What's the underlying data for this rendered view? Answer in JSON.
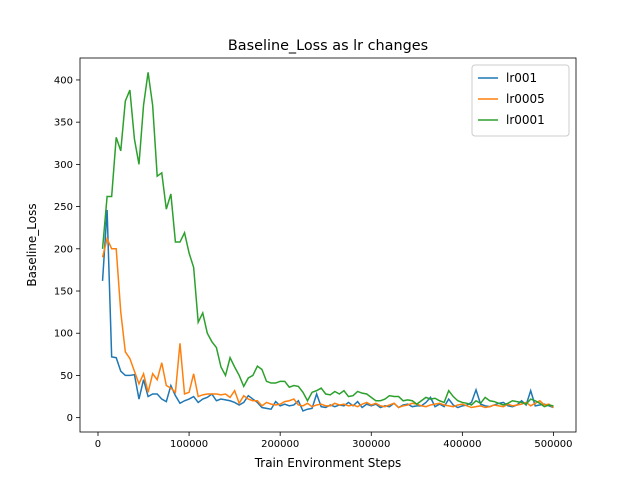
{
  "chart_data": {
    "type": "line",
    "title": "Baseline_Loss as lr changes",
    "x_label": "Train Environment Steps",
    "y_label": "Baseline_Loss",
    "x": [
      5000,
      10000,
      15000,
      20000,
      25000,
      30000,
      35000,
      40000,
      45000,
      50000,
      55000,
      60000,
      65000,
      70000,
      75000,
      80000,
      85000,
      90000,
      95000,
      100000,
      105000,
      110000,
      115000,
      120000,
      125000,
      130000,
      135000,
      140000,
      145000,
      150000,
      155000,
      160000,
      165000,
      170000,
      175000,
      180000,
      185000,
      190000,
      195000,
      200000,
      205000,
      210000,
      215000,
      220000,
      225000,
      230000,
      235000,
      240000,
      245000,
      250000,
      255000,
      260000,
      265000,
      270000,
      275000,
      280000,
      285000,
      290000,
      295000,
      300000,
      305000,
      310000,
      315000,
      320000,
      325000,
      330000,
      335000,
      340000,
      345000,
      350000,
      355000,
      360000,
      365000,
      370000,
      375000,
      380000,
      385000,
      390000,
      395000,
      400000,
      405000,
      410000,
      415000,
      420000,
      425000,
      430000,
      435000,
      440000,
      445000,
      450000,
      455000,
      460000,
      465000,
      470000,
      475000,
      480000,
      485000,
      490000,
      495000,
      500000
    ],
    "series": [
      {
        "name": "lr001",
        "color": "#1f77b4",
        "values": [
          162,
          246,
          72,
          71,
          55,
          50,
          50,
          51,
          22,
          45,
          25,
          28,
          28,
          22,
          19,
          38,
          26,
          17,
          20,
          22,
          25,
          18,
          22,
          24,
          28,
          20,
          22,
          21,
          20,
          18,
          15,
          18,
          26,
          22,
          18,
          12,
          11,
          10,
          19,
          14,
          16,
          14,
          15,
          20,
          8,
          10,
          11,
          28,
          13,
          12,
          15,
          13,
          15,
          14,
          18,
          14,
          19,
          12,
          16,
          14,
          16,
          12,
          14,
          13,
          17,
          12,
          15,
          16,
          13,
          14,
          14,
          18,
          24,
          13,
          16,
          13,
          22,
          15,
          12,
          14,
          15,
          18,
          33,
          16,
          14,
          13,
          15,
          17,
          18,
          14,
          13,
          15,
          20,
          15,
          32,
          14,
          15,
          16,
          14,
          12
        ]
      },
      {
        "name": "lr0005",
        "color": "#ff7f0e",
        "values": [
          190,
          212,
          200,
          200,
          125,
          78,
          70,
          55,
          40,
          52,
          30,
          52,
          45,
          65,
          38,
          35,
          30,
          88,
          28,
          30,
          52,
          25,
          27,
          28,
          28,
          28,
          27,
          28,
          24,
          32,
          17,
          26,
          22,
          20,
          20,
          14,
          18,
          16,
          15,
          16,
          19,
          20,
          22,
          15,
          14,
          17,
          13,
          15,
          16,
          14,
          14,
          17,
          15,
          16,
          14,
          15,
          13,
          16,
          18,
          15,
          17,
          14,
          13,
          15,
          17,
          12,
          14,
          15,
          17,
          16,
          14,
          13,
          15,
          16,
          17,
          15,
          14,
          13,
          15,
          16,
          14,
          12,
          13,
          14,
          12,
          13,
          15,
          14,
          13,
          16,
          14,
          15,
          16,
          18,
          14,
          17,
          20,
          15,
          16,
          12
        ]
      },
      {
        "name": "lr0001",
        "color": "#2ca02c",
        "values": [
          200,
          262,
          262,
          332,
          316,
          375,
          388,
          330,
          300,
          370,
          409,
          370,
          286,
          290,
          247,
          265,
          208,
          208,
          219,
          195,
          178,
          113,
          124,
          100,
          90,
          83,
          60,
          50,
          71,
          60,
          50,
          37,
          47,
          50,
          61,
          57,
          43,
          41,
          41,
          43,
          43,
          36,
          38,
          37,
          30,
          20,
          30,
          32,
          35,
          28,
          27,
          31,
          28,
          32,
          25,
          26,
          31,
          29,
          28,
          24,
          20,
          20,
          22,
          26,
          25,
          25,
          20,
          21,
          20,
          16,
          20,
          24,
          22,
          23,
          20,
          18,
          32,
          25,
          20,
          18,
          17,
          15,
          20,
          17,
          24,
          20,
          19,
          17,
          15,
          17,
          20,
          19,
          18,
          16,
          22,
          20,
          17,
          13,
          15,
          14
        ]
      }
    ],
    "xlim": [
      -19750,
      524750
    ],
    "ylim": [
      -17,
      426
    ],
    "xticks": [
      0,
      100000,
      200000,
      300000,
      400000,
      500000
    ],
    "yticks": [
      0,
      50,
      100,
      150,
      200,
      250,
      300,
      350,
      400
    ],
    "legend": "upper right"
  }
}
